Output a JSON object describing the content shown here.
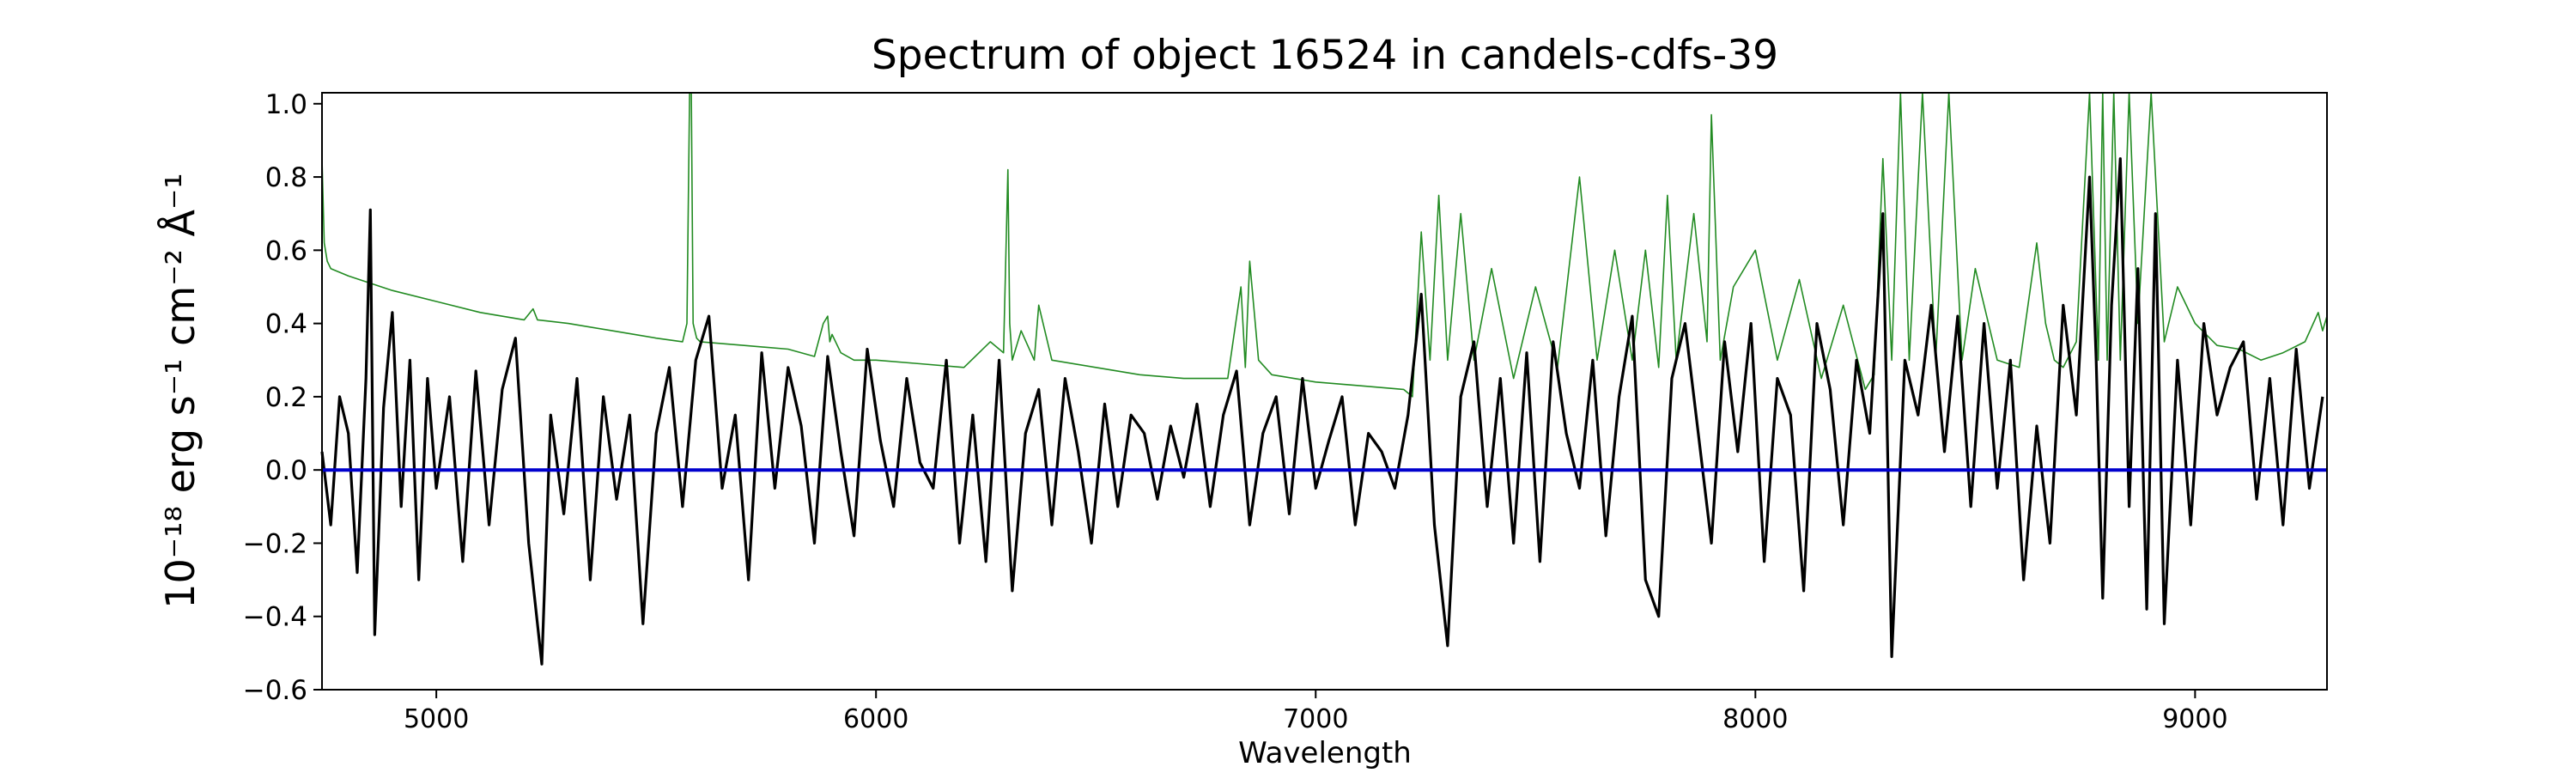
{
  "chart_data": {
    "type": "line",
    "title": "Spectrum of object 16524 in candels-cdfs-39",
    "xlabel": "Wavelength",
    "ylabel": "10⁻¹⁸ erg s⁻¹ cm⁻² Å⁻¹",
    "xlim": [
      4740,
      9300
    ],
    "ylim": [
      -0.6,
      1.03
    ],
    "xticks": [
      5000,
      6000,
      7000,
      8000,
      9000
    ],
    "yticks": [
      -0.6,
      -0.4,
      -0.2,
      0.0,
      0.2,
      0.4,
      0.6,
      0.8,
      1.0
    ],
    "ytick_labels": [
      "−0.6",
      "−0.4",
      "−0.2",
      "0.0",
      "0.2",
      "0.4",
      "0.6",
      "0.8",
      "1.0"
    ],
    "grid": false,
    "legend": "none",
    "series": [
      {
        "color": "#000000",
        "x": [
          4740,
          4760,
          4780,
          4800,
          4820,
          4840,
          4850,
          4860,
          4880,
          4900,
          4920,
          4940,
          4960,
          4980,
          5000,
          5030,
          5060,
          5090,
          5120,
          5150,
          5180,
          5210,
          5240,
          5260,
          5290,
          5320,
          5350,
          5380,
          5410,
          5440,
          5470,
          5500,
          5530,
          5560,
          5590,
          5620,
          5650,
          5680,
          5710,
          5740,
          5770,
          5800,
          5830,
          5860,
          5890,
          5920,
          5950,
          5980,
          6010,
          6040,
          6070,
          6100,
          6130,
          6160,
          6190,
          6220,
          6250,
          6280,
          6310,
          6340,
          6370,
          6400,
          6430,
          6460,
          6490,
          6520,
          6550,
          6580,
          6610,
          6640,
          6670,
          6700,
          6730,
          6760,
          6790,
          6820,
          6850,
          6880,
          6910,
          6940,
          6970,
          7000,
          7030,
          7060,
          7090,
          7120,
          7150,
          7180,
          7210,
          7240,
          7270,
          7300,
          7330,
          7360,
          7390,
          7420,
          7450,
          7480,
          7510,
          7540,
          7570,
          7600,
          7630,
          7660,
          7690,
          7720,
          7750,
          7780,
          7810,
          7840,
          7870,
          7900,
          7930,
          7960,
          7990,
          8020,
          8050,
          8080,
          8110,
          8140,
          8170,
          8200,
          8230,
          8260,
          8290,
          8310,
          8340,
          8370,
          8400,
          8430,
          8460,
          8490,
          8520,
          8550,
          8580,
          8610,
          8640,
          8670,
          8700,
          8730,
          8760,
          8775,
          8790,
          8810,
          8830,
          8850,
          8870,
          8890,
          8910,
          8930,
          8960,
          8990,
          9020,
          9050,
          9080,
          9110,
          9140,
          9170,
          9200,
          9230,
          9260,
          9290
        ],
        "y": [
          0.05,
          -0.15,
          0.2,
          0.1,
          -0.28,
          0.25,
          0.71,
          -0.45,
          0.17,
          0.43,
          -0.1,
          0.3,
          -0.3,
          0.25,
          -0.05,
          0.2,
          -0.25,
          0.27,
          -0.15,
          0.22,
          0.36,
          -0.2,
          -0.53,
          0.15,
          -0.12,
          0.25,
          -0.3,
          0.2,
          -0.08,
          0.15,
          -0.42,
          0.1,
          0.28,
          -0.1,
          0.3,
          0.42,
          -0.05,
          0.15,
          -0.3,
          0.32,
          -0.05,
          0.28,
          0.12,
          -0.2,
          0.31,
          0.05,
          -0.18,
          0.33,
          0.08,
          -0.1,
          0.25,
          0.02,
          -0.05,
          0.3,
          -0.2,
          0.15,
          -0.25,
          0.3,
          -0.33,
          0.1,
          0.22,
          -0.15,
          0.25,
          0.05,
          -0.2,
          0.18,
          -0.1,
          0.15,
          0.1,
          -0.08,
          0.12,
          -0.02,
          0.18,
          -0.1,
          0.15,
          0.27,
          -0.15,
          0.1,
          0.2,
          -0.12,
          0.25,
          -0.05,
          0.08,
          0.2,
          -0.15,
          0.1,
          0.05,
          -0.05,
          0.15,
          0.48,
          -0.15,
          -0.48,
          0.2,
          0.35,
          -0.1,
          0.25,
          -0.2,
          0.32,
          -0.25,
          0.35,
          0.1,
          -0.05,
          0.3,
          -0.18,
          0.2,
          0.42,
          -0.3,
          -0.4,
          0.25,
          0.4,
          0.1,
          -0.2,
          0.35,
          0.05,
          0.4,
          -0.25,
          0.25,
          0.15,
          -0.33,
          0.4,
          0.22,
          -0.15,
          0.3,
          0.1,
          0.7,
          -0.51,
          0.3,
          0.15,
          0.45,
          0.05,
          0.42,
          -0.1,
          0.4,
          -0.05,
          0.3,
          -0.3,
          0.12,
          -0.2,
          0.45,
          0.15,
          0.8,
          0.3,
          -0.35,
          0.45,
          0.85,
          -0.1,
          0.55,
          -0.38,
          0.7,
          -0.42,
          0.3,
          -0.15,
          0.4,
          0.15,
          0.28,
          0.35,
          -0.08,
          0.25,
          -0.15,
          0.33,
          -0.05,
          0.2
        ]
      },
      {
        "color": "#228b22",
        "x": [
          4740,
          4745,
          4752,
          4760,
          4800,
          4850,
          4900,
          5000,
          5100,
          5200,
          5220,
          5230,
          5300,
          5400,
          5500,
          5560,
          5570,
          5576,
          5580,
          5584,
          5592,
          5600,
          5700,
          5800,
          5860,
          5880,
          5890,
          5895,
          5900,
          5920,
          5950,
          6000,
          6100,
          6200,
          6260,
          6290,
          6300,
          6304,
          6310,
          6330,
          6360,
          6370,
          6400,
          6500,
          6600,
          6700,
          6800,
          6830,
          6840,
          6850,
          6870,
          6900,
          7000,
          7100,
          7200,
          7220,
          7240,
          7260,
          7280,
          7300,
          7330,
          7360,
          7400,
          7450,
          7500,
          7550,
          7600,
          7640,
          7680,
          7720,
          7750,
          7780,
          7800,
          7820,
          7860,
          7890,
          7900,
          7920,
          7950,
          8000,
          8050,
          8100,
          8150,
          8200,
          8250,
          8270,
          8290,
          8310,
          8330,
          8350,
          8380,
          8410,
          8440,
          8470,
          8500,
          8550,
          8600,
          8640,
          8660,
          8680,
          8700,
          8730,
          8760,
          8780,
          8790,
          8800,
          8815,
          8830,
          8850,
          8870,
          8900,
          8930,
          8960,
          9000,
          9050,
          9100,
          9150,
          9200,
          9250,
          9280,
          9290,
          9300
        ],
        "y": [
          0.85,
          0.62,
          0.57,
          0.55,
          0.53,
          0.51,
          0.49,
          0.46,
          0.43,
          0.41,
          0.44,
          0.41,
          0.4,
          0.38,
          0.36,
          0.35,
          0.4,
          1.03,
          1.03,
          0.4,
          0.36,
          0.35,
          0.34,
          0.33,
          0.31,
          0.4,
          0.42,
          0.35,
          0.37,
          0.32,
          0.3,
          0.3,
          0.29,
          0.28,
          0.35,
          0.32,
          0.82,
          0.4,
          0.3,
          0.38,
          0.3,
          0.45,
          0.3,
          0.28,
          0.26,
          0.25,
          0.25,
          0.5,
          0.28,
          0.57,
          0.3,
          0.26,
          0.24,
          0.23,
          0.22,
          0.2,
          0.65,
          0.3,
          0.75,
          0.3,
          0.7,
          0.3,
          0.55,
          0.25,
          0.5,
          0.28,
          0.8,
          0.3,
          0.6,
          0.3,
          0.6,
          0.28,
          0.75,
          0.3,
          0.7,
          0.35,
          0.97,
          0.3,
          0.5,
          0.6,
          0.3,
          0.52,
          0.25,
          0.45,
          0.22,
          0.26,
          0.85,
          0.3,
          1.03,
          0.3,
          1.03,
          0.3,
          1.03,
          0.3,
          0.55,
          0.3,
          0.28,
          0.62,
          0.4,
          0.3,
          0.28,
          0.35,
          1.03,
          0.3,
          1.03,
          0.3,
          1.03,
          0.3,
          1.03,
          0.4,
          1.03,
          0.35,
          0.5,
          0.4,
          0.34,
          0.33,
          0.3,
          0.32,
          0.35,
          0.43,
          0.38,
          0.42
        ]
      },
      {
        "color": "#0000cd",
        "x": [
          4740,
          9300
        ],
        "y": [
          0.0,
          0.0
        ]
      }
    ]
  }
}
